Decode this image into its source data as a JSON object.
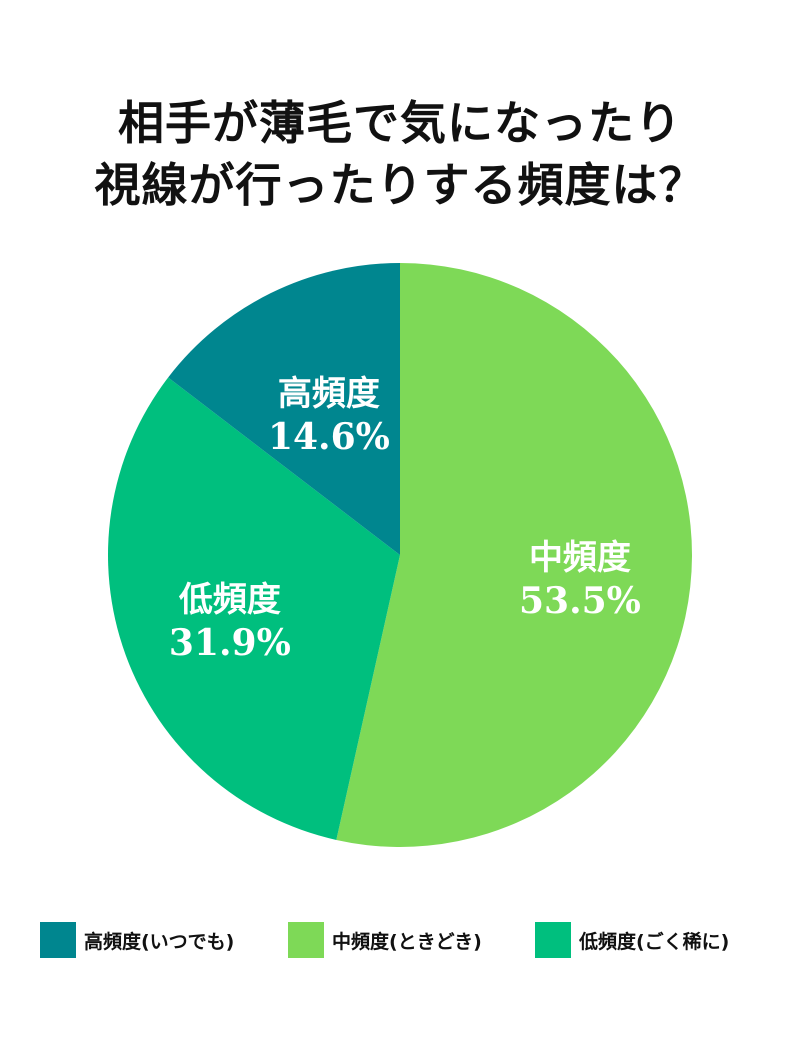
{
  "title": {
    "line1": "相手が薄毛で気になったり",
    "line2": "視線が行ったりする頻度は？"
  },
  "chart_data": {
    "type": "pie",
    "title": "相手が薄毛で気になったり視線が行ったりする頻度は？",
    "start": "12 o'clock, clockwise",
    "slices": [
      {
        "label": "中頻度",
        "value_text": "53.5%",
        "value": 53.5,
        "color": "#7ed957",
        "legend": "中頻度(ときどき)"
      },
      {
        "label": "低頻度",
        "value_text": "31.9%",
        "value": 31.9,
        "color": "#00bf7e",
        "legend": "低頻度(ごく稀に)"
      },
      {
        "label": "高頻度",
        "value_text": "14.6%",
        "value": 14.6,
        "color": "#00868f",
        "legend": "高頻度(いつでも)"
      }
    ],
    "legend": {
      "placement": "bottom",
      "order": [
        "高頻度(いつでも)",
        "中頻度(ときどき)",
        "低頻度(ごく稀に)"
      ]
    }
  }
}
